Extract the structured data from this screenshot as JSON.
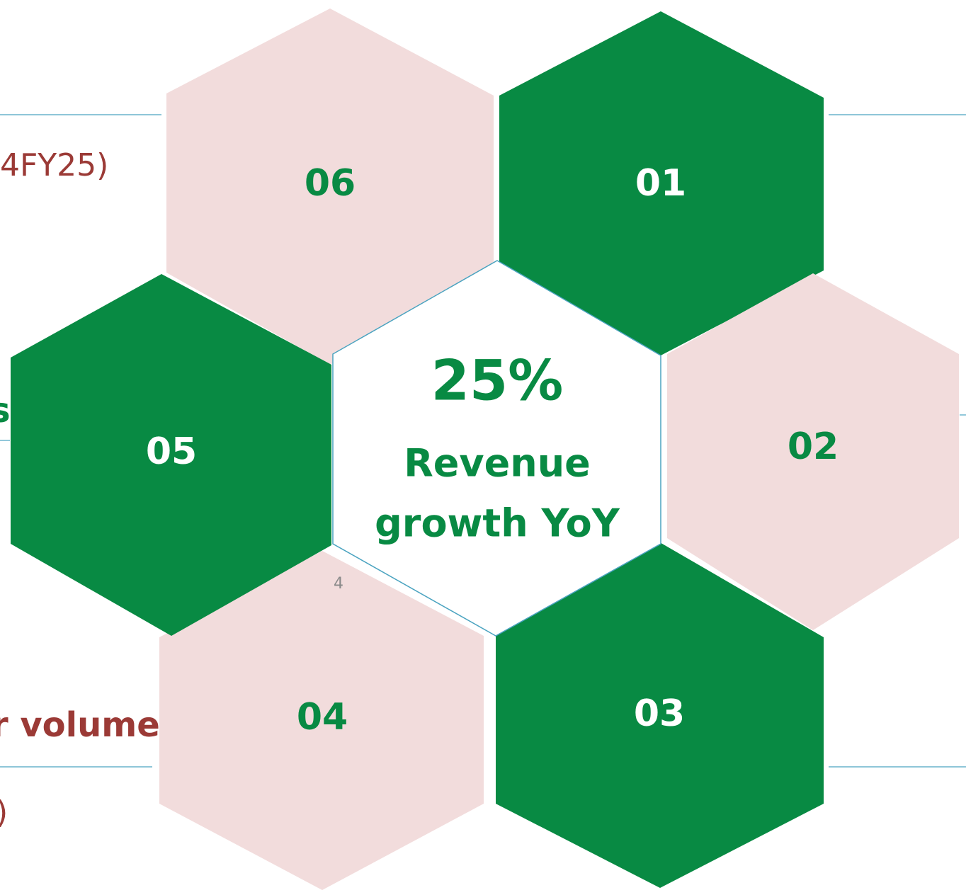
{
  "hexagons": [
    {
      "label": "06"
    },
    {
      "label": "01"
    },
    {
      "label": "02"
    },
    {
      "label": "03"
    },
    {
      "label": "04"
    },
    {
      "label": "05"
    }
  ],
  "center": {
    "value": "25%",
    "line1": "Revenue",
    "line2": "growth YoY"
  },
  "side_text": [
    "4FY25)",
    "s",
    "r volume",
    ")"
  ],
  "page_number": "4"
}
